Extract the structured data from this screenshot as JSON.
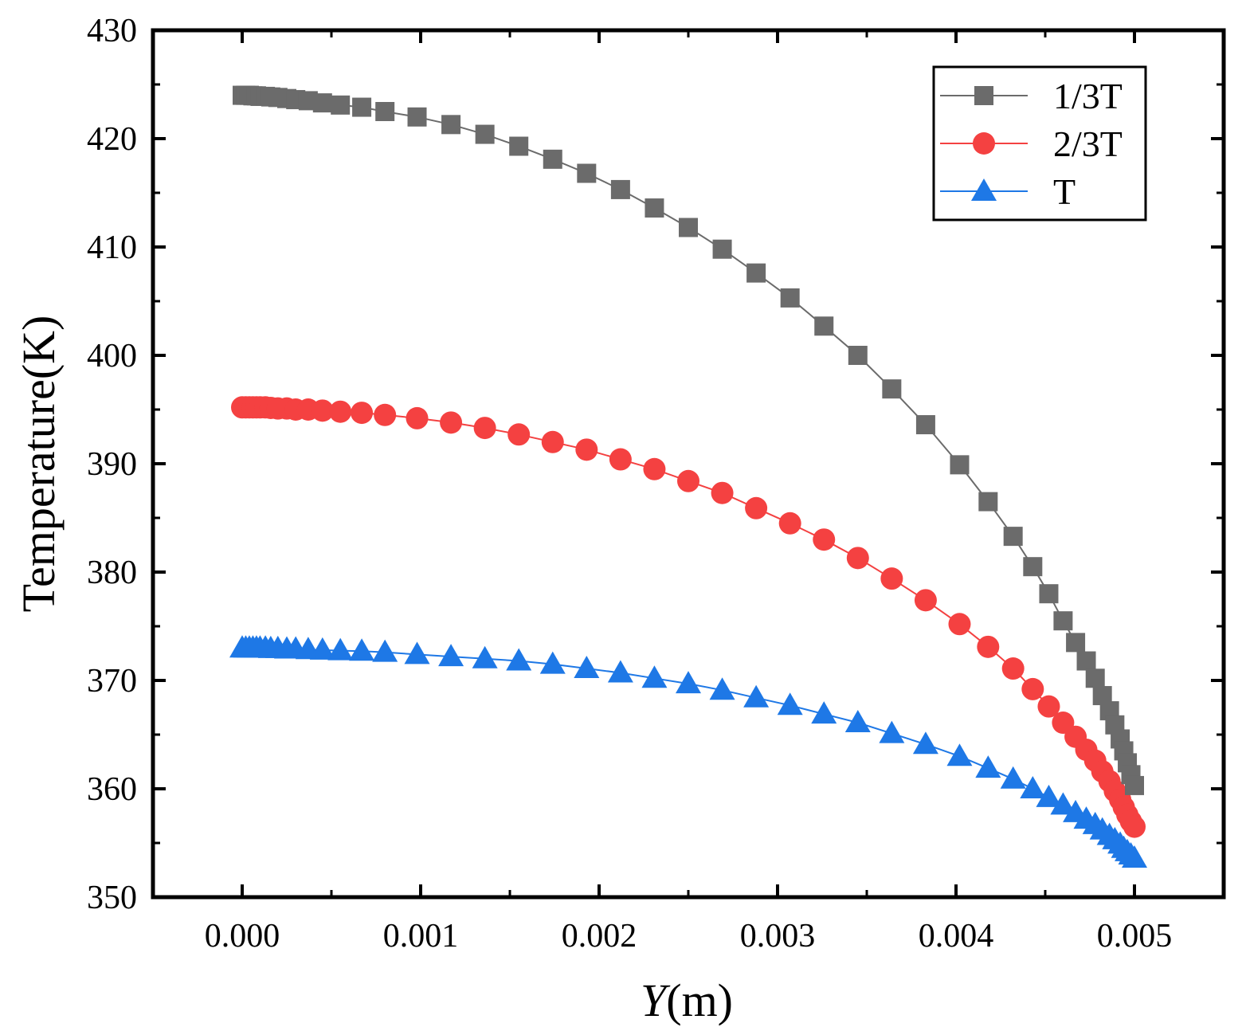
{
  "chart_data": {
    "type": "line",
    "title": "",
    "xlabel": "Y",
    "xlabel_unit": "(m)",
    "ylabel": "Temperature",
    "ylabel_unit": "(K)",
    "xlim": [
      -0.0005,
      0.0055
    ],
    "ylim": [
      350,
      430
    ],
    "xticks": [
      0,
      0.001,
      0.002,
      0.003,
      0.004,
      0.005
    ],
    "xtick_labels": [
      "0.000",
      "0.001",
      "0.002",
      "0.003",
      "0.004",
      "0.005"
    ],
    "yticks": [
      350,
      360,
      370,
      380,
      390,
      400,
      410,
      420,
      430
    ],
    "ytick_labels": [
      "350",
      "360",
      "370",
      "380",
      "390",
      "400",
      "410",
      "420",
      "430"
    ],
    "grid": false,
    "legend_position": "top-right",
    "x": [
      0,
      2e-05,
      4e-05,
      6e-05,
      8e-05,
      0.0001,
      0.00013,
      0.00016,
      0.0002,
      0.00025,
      0.0003,
      0.00037,
      0.00045,
      0.00055,
      0.00067,
      0.0008,
      0.00098,
      0.00117,
      0.00136,
      0.00155,
      0.00174,
      0.00193,
      0.00212,
      0.00231,
      0.0025,
      0.00269,
      0.00288,
      0.00307,
      0.00326,
      0.00345,
      0.00364,
      0.00383,
      0.00402,
      0.00418,
      0.00432,
      0.00443,
      0.00452,
      0.0046,
      0.00467,
      0.00473,
      0.00478,
      0.00482,
      0.00486,
      0.00489,
      0.00492,
      0.00494,
      0.00496,
      0.00498,
      0.005
    ],
    "series": [
      {
        "name": "1/3T",
        "color": "#6b6b6b",
        "marker": "square",
        "values": [
          424.0,
          424.0,
          424.0,
          423.95,
          423.95,
          423.9,
          423.9,
          423.85,
          423.8,
          423.7,
          423.6,
          423.5,
          423.3,
          423.1,
          422.9,
          422.5,
          422.0,
          421.3,
          420.4,
          419.3,
          418.1,
          416.8,
          415.3,
          413.6,
          411.8,
          409.8,
          407.6,
          405.3,
          402.7,
          400.0,
          396.9,
          393.6,
          389.9,
          386.5,
          383.3,
          380.5,
          378.0,
          375.5,
          373.5,
          371.8,
          370.2,
          368.6,
          367.2,
          365.9,
          364.6,
          363.5,
          362.4,
          361.3,
          360.3
        ]
      },
      {
        "name": "2/3T",
        "color": "#f44141",
        "marker": "circle",
        "values": [
          395.2,
          395.2,
          395.2,
          395.2,
          395.2,
          395.2,
          395.2,
          395.15,
          395.1,
          395.1,
          395.0,
          395.0,
          394.9,
          394.8,
          394.7,
          394.5,
          394.2,
          393.8,
          393.3,
          392.7,
          392.0,
          391.3,
          390.4,
          389.5,
          388.4,
          387.3,
          385.9,
          384.5,
          383.0,
          381.3,
          379.4,
          377.4,
          375.2,
          373.1,
          371.1,
          369.2,
          367.6,
          366.1,
          364.8,
          363.6,
          362.6,
          361.6,
          360.7,
          359.8,
          359.0,
          358.3,
          357.6,
          357.0,
          356.5
        ]
      },
      {
        "name": "T",
        "color": "#1e78e6",
        "marker": "triangle",
        "values": [
          373.0,
          373.0,
          373.0,
          373.0,
          373.0,
          373.0,
          373.0,
          372.95,
          372.95,
          372.9,
          372.9,
          372.85,
          372.8,
          372.75,
          372.7,
          372.6,
          372.4,
          372.2,
          372.0,
          371.8,
          371.5,
          371.1,
          370.7,
          370.2,
          369.7,
          369.1,
          368.4,
          367.7,
          366.9,
          366.1,
          365.1,
          364.1,
          363.0,
          361.9,
          360.9,
          360.0,
          359.2,
          358.5,
          357.8,
          357.2,
          356.7,
          356.2,
          355.7,
          355.3,
          354.9,
          354.5,
          354.2,
          353.9,
          353.6
        ]
      }
    ]
  }
}
